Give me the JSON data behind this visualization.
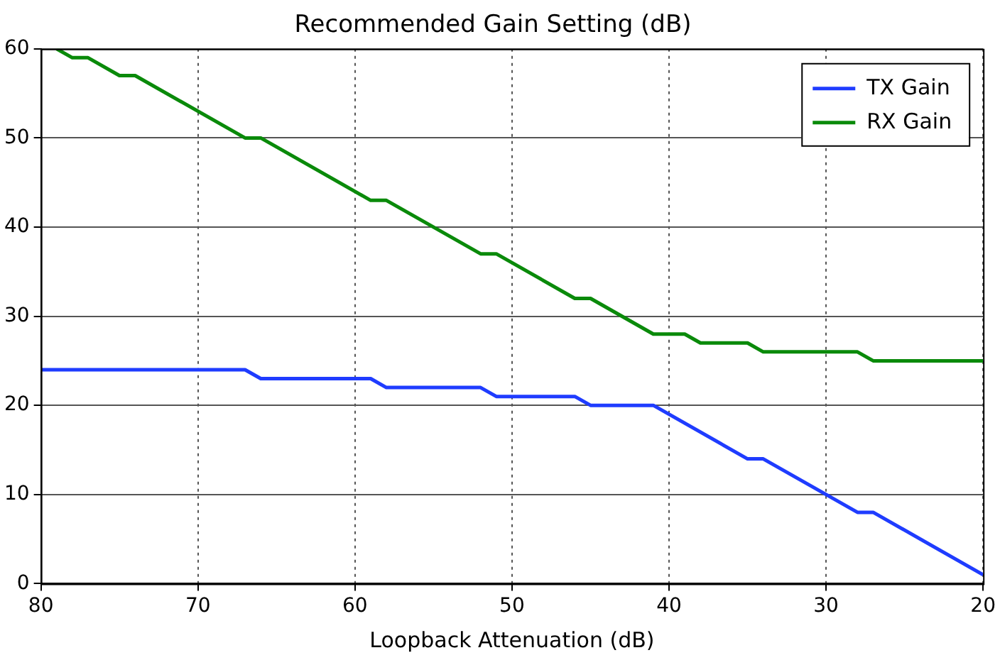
{
  "chart_data": {
    "type": "line",
    "title": "Recommended Gain Setting (dB)",
    "xlabel": "Loopback Attenuation (dB)",
    "xlim": [
      80,
      20
    ],
    "xticks": [
      80,
      70,
      60,
      50,
      40,
      30,
      20
    ],
    "ylim": [
      0,
      60
    ],
    "yticks": [
      0,
      10,
      20,
      30,
      40,
      50,
      60
    ],
    "grid": true,
    "legend": "top right",
    "line_style": "solid",
    "marker": "none",
    "series": [
      {
        "name": "TX Gain",
        "color": "#1f3cff",
        "x": [
          80,
          67,
          66,
          59,
          58,
          52,
          51,
          46,
          45,
          41,
          35,
          34,
          28,
          27,
          20
        ],
        "values": [
          24,
          24,
          23,
          23,
          22,
          22,
          21,
          21,
          20,
          20,
          14,
          14,
          8,
          8,
          1
        ]
      },
      {
        "name": "RX Gain",
        "color": "#0a8a0a",
        "x": [
          79,
          78,
          77,
          75,
          74,
          67,
          66,
          59,
          58,
          52,
          51,
          46,
          45,
          41,
          39,
          38,
          35,
          34,
          28,
          27,
          20
        ],
        "values": [
          60,
          59,
          59,
          57,
          57,
          50,
          50,
          43,
          43,
          37,
          37,
          32,
          32,
          28,
          28,
          27,
          27,
          26,
          26,
          25,
          25
        ]
      }
    ]
  }
}
